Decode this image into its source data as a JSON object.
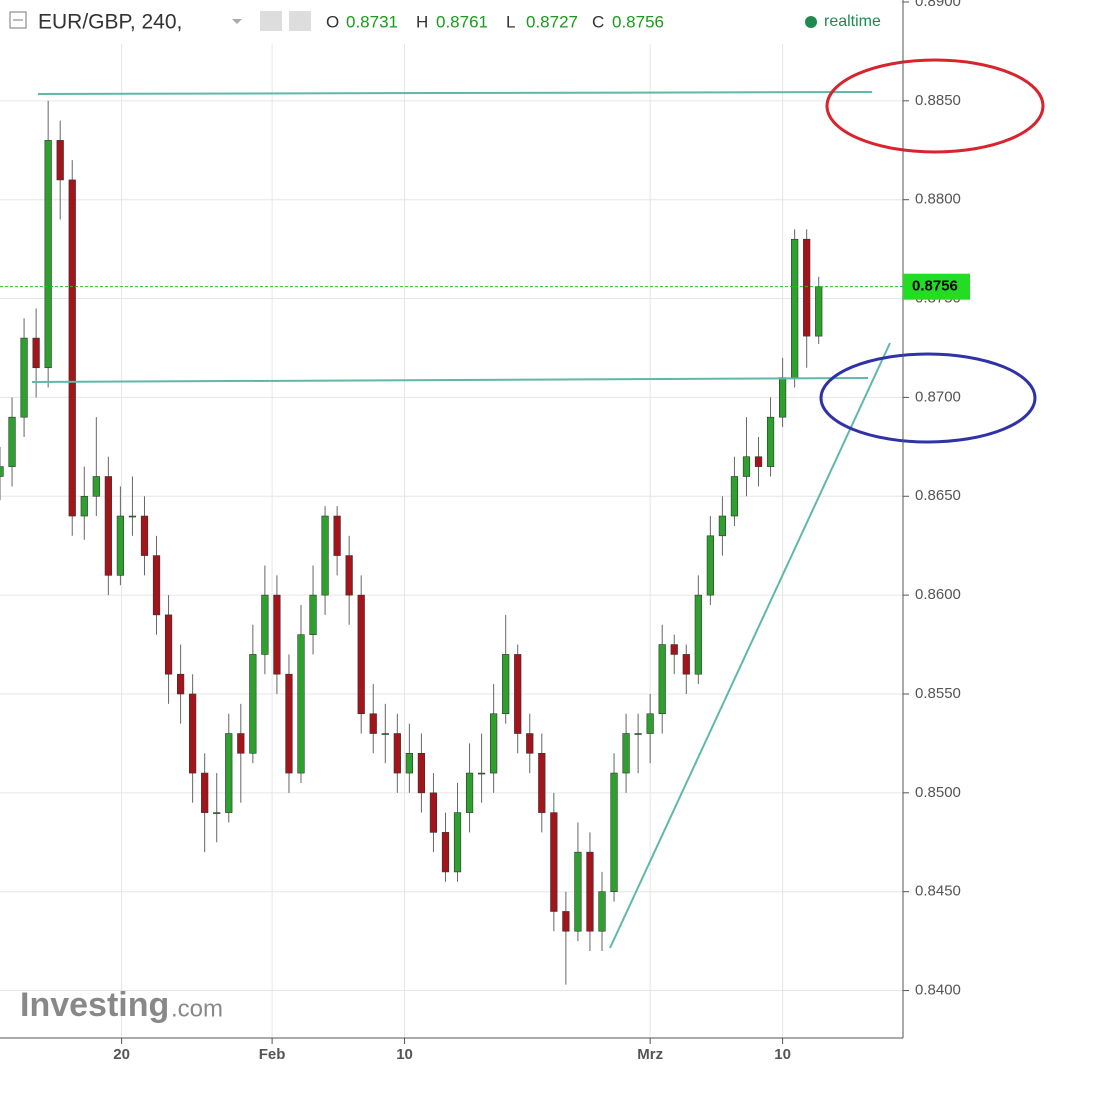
{
  "chart_data": {
    "type": "candlestick",
    "title": "EUR/GBP, 240,",
    "legend_labels": [
      "O",
      "H",
      "L",
      "C"
    ],
    "status": "realtime",
    "watermark": [
      "Investing",
      ".com"
    ],
    "x": [
      0,
      1,
      2,
      3,
      4,
      5,
      6,
      7,
      8,
      9,
      10,
      11,
      12,
      13,
      14,
      15,
      16,
      17,
      18,
      19,
      20,
      21,
      22,
      23,
      24,
      25,
      26,
      27,
      28,
      29,
      30,
      31,
      32,
      33,
      34,
      35,
      36,
      37,
      38,
      39,
      40,
      41,
      42,
      43,
      44,
      45,
      46,
      47,
      48,
      49,
      50,
      51,
      52,
      53,
      54,
      55,
      56,
      57,
      58,
      59,
      60,
      61,
      62,
      63,
      64,
      65,
      66,
      67,
      68
    ],
    "open": [
      0.866,
      0.8665,
      0.869,
      0.873,
      0.8715,
      0.883,
      0.881,
      0.864,
      0.865,
      0.866,
      0.861,
      0.864,
      0.864,
      0.862,
      0.859,
      0.856,
      0.855,
      0.851,
      0.849,
      0.849,
      0.853,
      0.852,
      0.857,
      0.86,
      0.856,
      0.851,
      0.858,
      0.86,
      0.864,
      0.862,
      0.86,
      0.854,
      0.853,
      0.853,
      0.851,
      0.852,
      0.85,
      0.848,
      0.846,
      0.849,
      0.851,
      0.851,
      0.854,
      0.857,
      0.853,
      0.852,
      0.849,
      0.844,
      0.843,
      0.847,
      0.843,
      0.845,
      0.851,
      0.853,
      0.853,
      0.854,
      0.8575,
      0.857,
      0.856,
      0.86,
      0.863,
      0.864,
      0.866,
      0.867,
      0.8665,
      0.869,
      0.871,
      0.878,
      0.8731
    ],
    "high": [
      0.8675,
      0.87,
      0.874,
      0.8745,
      0.885,
      0.884,
      0.882,
      0.8665,
      0.869,
      0.867,
      0.8655,
      0.866,
      0.865,
      0.863,
      0.86,
      0.8575,
      0.856,
      0.852,
      0.851,
      0.854,
      0.8545,
      0.8585,
      0.8615,
      0.861,
      0.857,
      0.8595,
      0.8615,
      0.8645,
      0.8645,
      0.863,
      0.861,
      0.8555,
      0.8545,
      0.854,
      0.8535,
      0.853,
      0.851,
      0.849,
      0.8505,
      0.8525,
      0.853,
      0.8555,
      0.859,
      0.8575,
      0.854,
      0.853,
      0.85,
      0.845,
      0.8485,
      0.848,
      0.846,
      0.852,
      0.854,
      0.854,
      0.855,
      0.8585,
      0.858,
      0.8575,
      0.861,
      0.864,
      0.865,
      0.867,
      0.869,
      0.868,
      0.87,
      0.872,
      0.8785,
      0.8785,
      0.8761
    ],
    "low": [
      0.8648,
      0.8655,
      0.868,
      0.87,
      0.8705,
      0.879,
      0.863,
      0.8628,
      0.864,
      0.86,
      0.8605,
      0.863,
      0.861,
      0.858,
      0.8545,
      0.8535,
      0.8495,
      0.847,
      0.8475,
      0.8485,
      0.8495,
      0.8515,
      0.856,
      0.855,
      0.85,
      0.8505,
      0.857,
      0.859,
      0.861,
      0.8585,
      0.853,
      0.852,
      0.8515,
      0.85,
      0.85,
      0.849,
      0.847,
      0.8455,
      0.8455,
      0.848,
      0.8495,
      0.85,
      0.8535,
      0.852,
      0.851,
      0.848,
      0.843,
      0.8403,
      0.8425,
      0.842,
      0.842,
      0.8445,
      0.85,
      0.851,
      0.8515,
      0.853,
      0.856,
      0.855,
      0.8555,
      0.8595,
      0.862,
      0.8635,
      0.865,
      0.8655,
      0.866,
      0.8685,
      0.8705,
      0.8715,
      0.8727
    ],
    "close": [
      0.8665,
      0.869,
      0.873,
      0.8715,
      0.883,
      0.881,
      0.864,
      0.865,
      0.866,
      0.861,
      0.864,
      0.864,
      0.862,
      0.859,
      0.856,
      0.855,
      0.851,
      0.849,
      0.849,
      0.853,
      0.852,
      0.857,
      0.86,
      0.856,
      0.851,
      0.858,
      0.86,
      0.864,
      0.862,
      0.86,
      0.854,
      0.853,
      0.853,
      0.851,
      0.852,
      0.85,
      0.848,
      0.846,
      0.849,
      0.851,
      0.851,
      0.854,
      0.857,
      0.853,
      0.852,
      0.849,
      0.844,
      0.843,
      0.847,
      0.843,
      0.845,
      0.851,
      0.853,
      0.853,
      0.854,
      0.8575,
      0.857,
      0.856,
      0.86,
      0.863,
      0.864,
      0.866,
      0.867,
      0.8665,
      0.869,
      0.871,
      0.878,
      0.8731,
      0.8756
    ],
    "up_color": "#2ea02e",
    "down_color": "#a3141b",
    "xlim": [
      0,
      75
    ],
    "xticks": [
      {
        "value": 10.1,
        "label": "20"
      },
      {
        "value": 22.6,
        "label": "Feb"
      },
      {
        "value": 33.6,
        "label": "10"
      },
      {
        "value": 54,
        "label": "Mrz"
      },
      {
        "value": 65,
        "label": "10"
      }
    ],
    "ylim": [
      0.8376,
      0.8901
    ],
    "yticks": [
      {
        "value": 0.84,
        "label": "0.8400"
      },
      {
        "value": 0.845,
        "label": "0.8450"
      },
      {
        "value": 0.85,
        "label": "0.8500"
      },
      {
        "value": 0.855,
        "label": "0.8550"
      },
      {
        "value": 0.86,
        "label": "0.8600"
      },
      {
        "value": 0.865,
        "label": "0.8650"
      },
      {
        "value": 0.87,
        "label": "0.8700"
      },
      {
        "value": 0.875,
        "label": "0.8750"
      },
      {
        "value": 0.88,
        "label": "0.8800"
      },
      {
        "value": 0.885,
        "label": "0.8850"
      },
      {
        "value": 0.89,
        "label": "0.8900"
      }
    ],
    "grid": true
  }
}
